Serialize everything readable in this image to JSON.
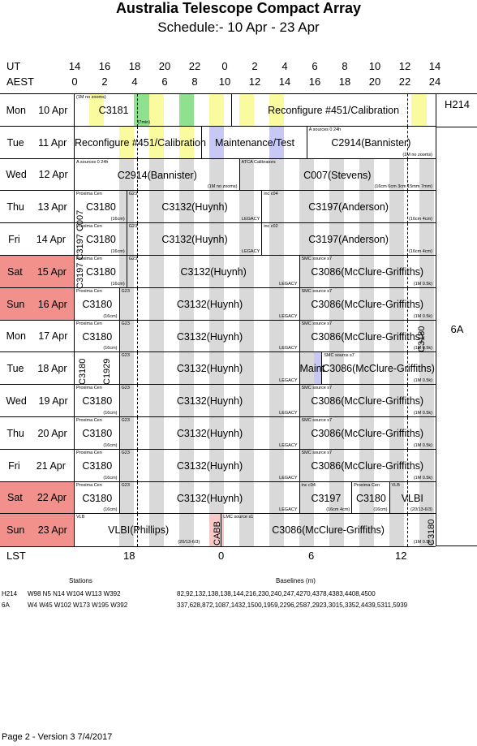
{
  "title": "Australia Telescope Compact Array",
  "subtitle": "Schedule:- 10 Apr - 23 Apr",
  "axis": {
    "ut_label": "UT",
    "aest_label": "AEST",
    "lst_label": "LST",
    "ut_ticks": [
      "14",
      "16",
      "18",
      "20",
      "22",
      "0",
      "2",
      "4",
      "6",
      "8",
      "10",
      "12",
      "14"
    ],
    "aest_ticks": [
      "0",
      "2",
      "4",
      "6",
      "8",
      "10",
      "12",
      "14",
      "16",
      "18",
      "20",
      "22",
      "24"
    ],
    "lst_ticks": [
      "18",
      "0",
      "6",
      "12"
    ]
  },
  "configs": [
    {
      "name": "H214"
    },
    {
      "name": "6A"
    }
  ],
  "rows": [
    {
      "dow": "Mon",
      "date": "10 Apr",
      "weekend": false,
      "blocks": [
        {
          "text": "C3181",
          "note": "(1M no zooms)",
          "note2": "(7min)"
        },
        {
          "text": "Reconfigure #451/Calibration"
        }
      ]
    },
    {
      "dow": "Tue",
      "date": "11 Apr",
      "weekend": false,
      "blocks": [
        {
          "text": "Reconfigure #451/Calibration"
        },
        {
          "text": "Maintenance/Test"
        },
        {
          "text": "C2914(Bannister)",
          "note": "A  sources 0 24h",
          "note2": "(1M no zooms)"
        }
      ]
    },
    {
      "dow": "Wed",
      "date": "12 Apr",
      "weekend": false,
      "blocks": [
        {
          "text": "C2914(Bannister)",
          "note": "A  sources 0 24h",
          "note2": "(1M no zooms)"
        },
        {
          "text": "C007(Stevens)",
          "note": "ATCA Calibrators",
          "note2": "(16cm 6cm 3cm 15mm 7mm)"
        }
      ]
    },
    {
      "dow": "Thu",
      "date": "13 Apr",
      "weekend": false,
      "blocks": [
        {
          "text": "C3180",
          "note": "Proxima Cen",
          "note2": "(16cm)"
        },
        {
          "text": "C3132(Huynh)",
          "note": "G23",
          "note2": "LEGACY"
        },
        {
          "text": "C3197(Anderson)",
          "note": "inc c04",
          "note2": "(16cm 4cm)"
        }
      ]
    },
    {
      "dow": "Fri",
      "date": "14 Apr",
      "weekend": false,
      "blocks": [
        {
          "text": "C3180",
          "note": "Proxima Cen",
          "note2": "(16cm)"
        },
        {
          "text": "C3132(Huynh)",
          "note": "G23",
          "note2": "LEGACY"
        },
        {
          "text": "C3197(Anderson)",
          "note": "inc c02",
          "note2": "(16cm 4cm)"
        }
      ]
    },
    {
      "dow": "Sat",
      "date": "15 Apr",
      "weekend": true,
      "blocks": [
        {
          "text": "C3180",
          "note": "Proxima Cen",
          "note2": "(16cm)"
        },
        {
          "text": "C3132(Huynh)",
          "note": "G23",
          "note2": "LEGACY"
        },
        {
          "text": "C3086(McClure-Griffiths)",
          "note": "SMC source  s7",
          "note2": "(1M 0.5k)"
        }
      ]
    },
    {
      "dow": "Sun",
      "date": "16 Apr",
      "weekend": true,
      "blocks": [
        {
          "text": "C3180",
          "note": "Proxima Cen",
          "note2": "(16cm)"
        },
        {
          "text": "C3132(Huynh)",
          "note": "G23",
          "note2": "LEGACY"
        },
        {
          "text": "C3086(McClure-Griffiths)",
          "note": "SMC source  s7",
          "note2": "(1M 0.5k)"
        }
      ]
    },
    {
      "dow": "Mon",
      "date": "17 Apr",
      "weekend": false,
      "blocks": [
        {
          "text": "C3180",
          "note": "Proxima Cen",
          "note2": "(16cm)"
        },
        {
          "text": "C3132(Huynh)",
          "note": "G23",
          "note2": "LEGACY"
        },
        {
          "text": "C3086(McClure-Griffiths)",
          "note": "SMC source  s7",
          "note2": "(1M 0.5k)"
        }
      ]
    },
    {
      "dow": "Tue",
      "date": "18 Apr",
      "weekend": false,
      "blocks": [
        {
          "text": "C3132(Huynh)",
          "note": "G23",
          "note2": "LEGACY"
        },
        {
          "text": "Maint"
        },
        {
          "text": "C3086(McClure-Griffiths)",
          "note": "SMC source  s7",
          "note2": "(1M 0.5k)"
        }
      ]
    },
    {
      "dow": "Wed",
      "date": "19 Apr",
      "weekend": false,
      "blocks": [
        {
          "text": "C3180",
          "note": "Proxima Cen",
          "note2": "(16cm)"
        },
        {
          "text": "C3132(Huynh)",
          "note": "G23",
          "note2": "LEGACY"
        },
        {
          "text": "C3086(McClure-Griffiths)",
          "note": "SMC source  s7",
          "note2": "(1M 0.5k)"
        }
      ]
    },
    {
      "dow": "Thu",
      "date": "20 Apr",
      "weekend": false,
      "blocks": [
        {
          "text": "C3180",
          "note": "Proxima Cen",
          "note2": "(16cm)"
        },
        {
          "text": "C3132(Huynh)",
          "note": "G23",
          "note2": "LEGACY"
        },
        {
          "text": "C3086(McClure-Griffiths)",
          "note": "SMC source  s7",
          "note2": "(1M 0.5k)"
        }
      ]
    },
    {
      "dow": "Fri",
      "date": "21 Apr",
      "weekend": false,
      "blocks": [
        {
          "text": "C3180",
          "note": "Proxima Cen",
          "note2": "(16cm)"
        },
        {
          "text": "C3132(Huynh)",
          "note": "G23",
          "note2": "LEGACY"
        },
        {
          "text": "C3086(McClure-Griffiths)",
          "note": "SMC source  s7",
          "note2": "(1M 0.5k)"
        }
      ]
    },
    {
      "dow": "Sat",
      "date": "22 Apr",
      "weekend": true,
      "blocks": [
        {
          "text": "C3180",
          "note": "Proxima Cen",
          "note2": "(16cm)"
        },
        {
          "text": "C3132(Huynh)",
          "note": "G23",
          "note2": "LEGACY"
        },
        {
          "text": "C3197",
          "note": "inc c04",
          "note2": "(16cm 4cm)"
        },
        {
          "text": "C3180",
          "note": "Proxima Cen",
          "note2": "(16cm)"
        },
        {
          "text": "VLBI",
          "note": "VLB",
          "note2": "(20/13-6/3)"
        }
      ]
    },
    {
      "dow": "Sun",
      "date": "23 Apr",
      "weekend": true,
      "blocks": [
        {
          "text": "VLBI(Phillips)",
          "note": "VLB",
          "note2": "(20/13-6/3)"
        },
        {
          "text": "C3086(McClure-Griffiths)",
          "note": "LMC source  s1",
          "note2": "(1M 0.5k)"
        }
      ]
    }
  ],
  "vertical_labels": {
    "c3197_c007": "C3197 C3197 C007",
    "c3180_wed": "C3180",
    "c1929": "C1929",
    "cabb": "CABB",
    "c3180_mon": "C3180",
    "c3180_sun": "C3180"
  },
  "footer": {
    "stations_header": "Stations",
    "baselines_header": "Baselines (m)",
    "arrays": [
      {
        "name": "H214",
        "stations": "W98 N5 N14 W104 W113 W392",
        "baselines": "82,92,132,138,138,144,216,230,240,247,4270,4378,4383,4408,4500"
      },
      {
        "name": "6A",
        "stations": "W4 W45 W102 W173 W195 W392",
        "baselines": "337,628,872,1087,1432,1500,1959,2296,2587,2923,3015,3352,4439,5311,5939"
      }
    ],
    "page_info": "Page 2 - Version 3  7/4/2017"
  }
}
